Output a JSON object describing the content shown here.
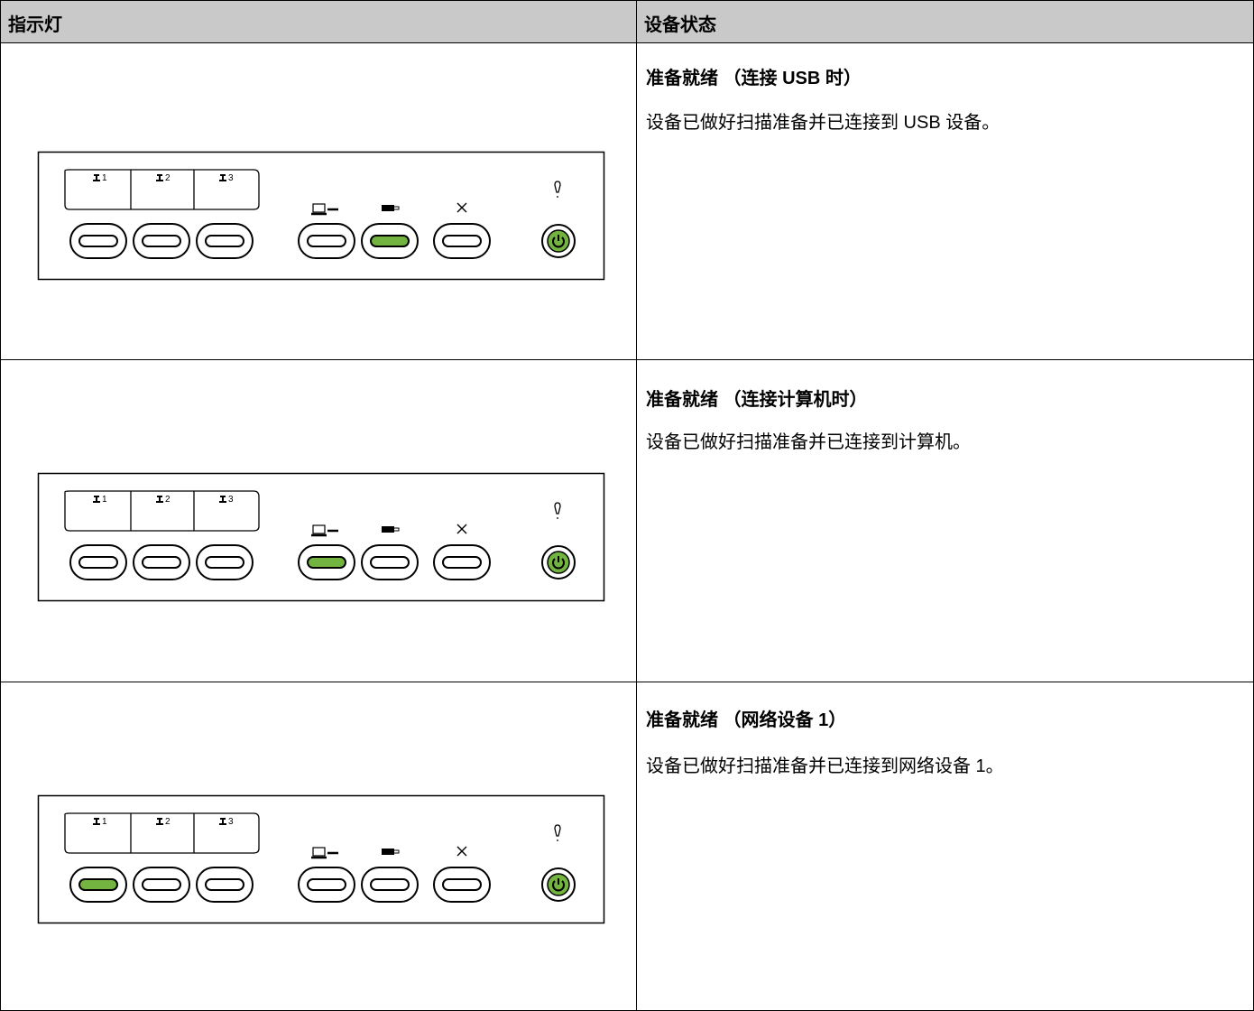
{
  "header": {
    "col1": "指示灯",
    "col2": "设备状态"
  },
  "panel": {
    "tabs": [
      "1",
      "2",
      "3"
    ]
  },
  "rows": [
    {
      "title": "准备就绪 （连接 USB 时）",
      "description": "设备已做好扫描准备并已连接到 USB 设备。",
      "lit": 4
    },
    {
      "title": "准备就绪 （连接计算机时）",
      "description": "设备已做好扫描准备并已连接到计算机。",
      "lit": 3
    },
    {
      "title": "准备就绪 （网络设备 1）",
      "description": "设备已做好扫描准备并已连接到网络设备 1。",
      "lit": 0
    }
  ]
}
